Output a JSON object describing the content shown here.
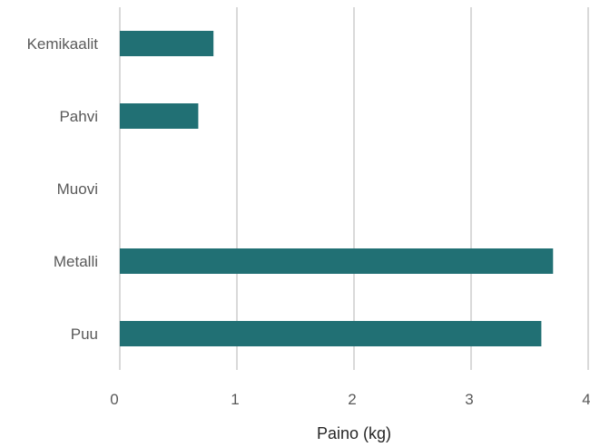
{
  "chart_data": {
    "type": "bar",
    "orientation": "horizontal",
    "categories": [
      "Kemikaalit",
      "Pahvi",
      "Muovi",
      "Metalli",
      "Puu"
    ],
    "values": [
      0.8,
      0.67,
      0,
      3.7,
      3.6
    ],
    "xlabel": "Paino (kg)",
    "ylabel": "",
    "xlim": [
      0,
      4
    ],
    "xticks": [
      "0",
      "1",
      "2",
      "3",
      "4"
    ],
    "grid": "vertical",
    "bar_color": "#217074",
    "grid_color": "#d9d9d9"
  }
}
